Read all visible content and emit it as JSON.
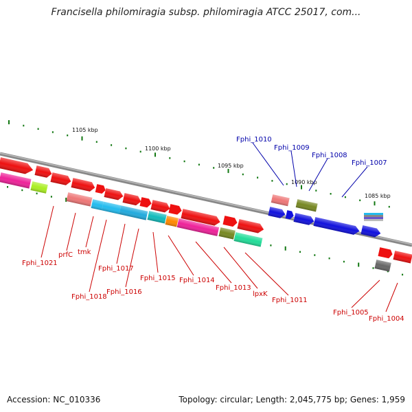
{
  "title": "Francisella philomiragia subsp. philomiragia ATCC 25017, com...",
  "footer": {
    "accession": "Accession: NC_010336",
    "stats": "Topology: circular; Length: 2,045,775 bp; Genes: 1,959"
  },
  "scale_labels": [
    "1105 kbp",
    "1100 kbp",
    "1095 kbp",
    "1090 kbp",
    "1085 kbp"
  ],
  "genes_above": [
    "Fphi_1010",
    "Fphi_1009",
    "Fphi_1008",
    "Fphi_1007"
  ],
  "genes_below": [
    "Fphi_1021",
    "prfC",
    "tmk",
    "Fphi_1018",
    "Fphi_1017",
    "Fphi_1016",
    "Fphi_1015",
    "Fphi_1014",
    "Fphi_1013",
    "lpxK",
    "Fphi_1011",
    "Fphi_1005",
    "Fphi_1004"
  ],
  "colors": {
    "red": "#ee1111",
    "blue": "#1111dd",
    "pink": "#ee2299",
    "salmon": "#ee7777",
    "cyan": "#22bbee",
    "teal": "#11bbbb",
    "orange": "#ff8800",
    "olive": "#778822",
    "green": "#22dd99",
    "lime": "#aaee22",
    "gray": "#666666",
    "tick": "#117711",
    "label_red": "#cc0000",
    "label_blue": "#0000aa"
  }
}
